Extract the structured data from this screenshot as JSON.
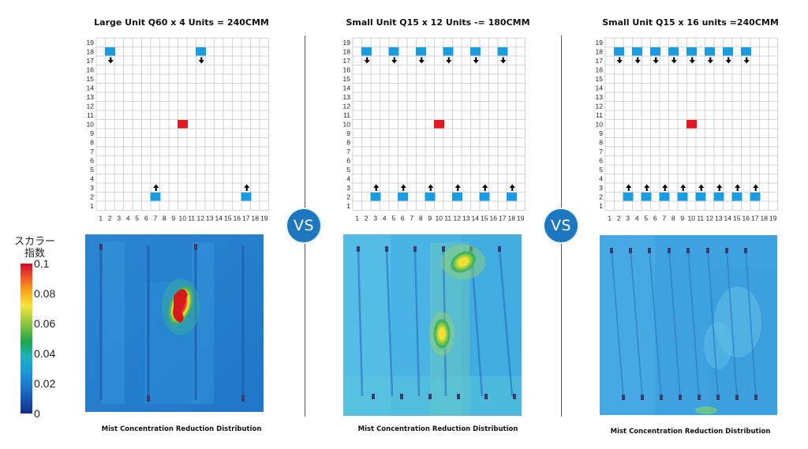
{
  "panels": [
    {
      "title": "Large Unit Q60 x 4 Units = 240CMM",
      "caption": "Mist Concentration Reduction Distribution",
      "axis_labels": [
        "1",
        "2",
        "3",
        "4",
        "5",
        "6",
        "7",
        "8",
        "9",
        "10",
        "11",
        "12",
        "13",
        "14",
        "15",
        "16",
        "17",
        "18",
        "19"
      ],
      "top_units": [
        2,
        12
      ],
      "bottom_units": [
        7,
        17
      ],
      "center": [
        10,
        10
      ]
    },
    {
      "title": "Small Unit Q15 x 12 Units -= 180CMM",
      "caption": "Mist Concentration Reduction Distribution",
      "axis_labels": [
        "1",
        "2",
        "3",
        "4",
        "5",
        "6",
        "7",
        "8",
        "9",
        "10",
        "11",
        "12",
        "13",
        "14",
        "15",
        "16",
        "17",
        "18",
        "19"
      ],
      "top_units": [
        2,
        5,
        8,
        11,
        14,
        17
      ],
      "bottom_units": [
        3,
        6,
        9,
        12,
        15,
        18
      ],
      "center": [
        10,
        10
      ]
    },
    {
      "title": "Small Unit Q15 x 16 units =240CMM",
      "caption": "Mist Concentration Reduction Distribution",
      "axis_labels": [
        "1",
        "2",
        "3",
        "4",
        "5",
        "6",
        "7",
        "8",
        "9",
        "10",
        "11",
        "12",
        "13",
        "14",
        "15",
        "16",
        "17",
        "18",
        "19"
      ],
      "top_units": [
        2,
        4,
        6,
        8,
        10,
        12,
        14,
        16
      ],
      "bottom_units": [
        3,
        5,
        7,
        9,
        11,
        13,
        15,
        17
      ],
      "center": [
        10,
        10
      ]
    }
  ],
  "vs_label": "VS",
  "legend": {
    "title_line1": "スカラー",
    "title_line2": "指数",
    "ticks": [
      "0.1",
      "0.08",
      "0.06",
      "0.04",
      "0.02",
      "0"
    ]
  },
  "colors": {
    "unit": "#1a9ce0",
    "center": "#e4161e",
    "arrow": "#000000",
    "grid": "#c8c8c8",
    "vs_badge": "#1d76c0"
  },
  "icons": {
    "down_arrow": "down-arrow-icon",
    "up_arrow": "up-arrow-icon"
  }
}
